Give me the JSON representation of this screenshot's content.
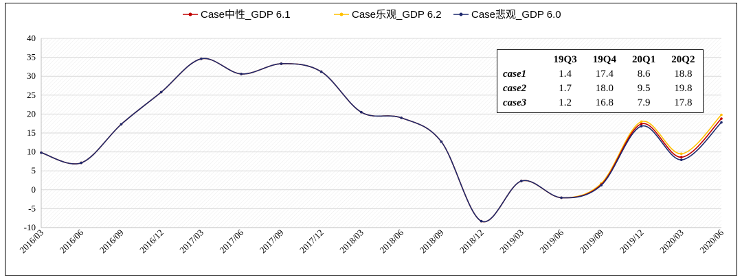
{
  "chart_data": {
    "type": "line",
    "x": [
      "2016/03",
      "2016/06",
      "2016/09",
      "2016/12",
      "2017/03",
      "2017/06",
      "2017/09",
      "2017/12",
      "2018/03",
      "2018/06",
      "2018/09",
      "2018/12",
      "2019/03",
      "2019/06",
      "2019/09",
      "2019/12",
      "2020/03",
      "2020/06"
    ],
    "ylim": [
      -10,
      40
    ],
    "yticks": [
      -10,
      -5,
      0,
      5,
      10,
      15,
      20,
      25,
      30,
      35,
      40
    ],
    "grid": true,
    "legend_position": "top",
    "series": [
      {
        "name": "Case中性_GDP 6.1",
        "color": "#c00000",
        "values": [
          9.8,
          7.1,
          17.3,
          25.8,
          34.6,
          30.6,
          33.3,
          31.2,
          20.5,
          19.0,
          12.7,
          -8.3,
          2.3,
          -2.1,
          1.4,
          17.4,
          8.6,
          18.8
        ]
      },
      {
        "name": "Case乐观_GDP 6.2",
        "color": "#ffc000",
        "values": [
          9.8,
          7.1,
          17.3,
          25.8,
          34.6,
          30.6,
          33.3,
          31.2,
          20.5,
          19.0,
          12.7,
          -8.3,
          2.3,
          -2.1,
          1.7,
          18.0,
          9.5,
          19.8
        ]
      },
      {
        "name": "Case悲观_GDP 6.0",
        "color": "#1f2a6e",
        "values": [
          9.8,
          7.1,
          17.3,
          25.8,
          34.6,
          30.6,
          33.3,
          31.2,
          20.5,
          19.0,
          12.7,
          -8.3,
          2.3,
          -2.1,
          1.2,
          16.8,
          7.9,
          17.8
        ]
      }
    ],
    "inset_table": {
      "columns": [
        "19Q3",
        "19Q4",
        "20Q1",
        "20Q2"
      ],
      "rows": [
        {
          "label": "case1",
          "values": [
            "1.4",
            "17.4",
            "8.6",
            "18.8"
          ]
        },
        {
          "label": "case2",
          "values": [
            "1.7",
            "18.0",
            "9.5",
            "19.8"
          ]
        },
        {
          "label": "case3",
          "values": [
            "1.2",
            "16.8",
            "7.9",
            "17.8"
          ]
        }
      ]
    }
  }
}
